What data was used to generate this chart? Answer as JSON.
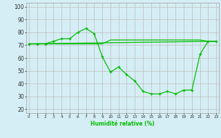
{
  "xlabel": "Humidité relative (%)",
  "background_color": "#d5eef5",
  "grid_color": "#bbbbbb",
  "line_color": "#00bb00",
  "x_ticks": [
    0,
    1,
    2,
    3,
    4,
    5,
    6,
    7,
    8,
    9,
    10,
    11,
    12,
    13,
    14,
    15,
    16,
    17,
    18,
    19,
    20,
    21,
    22,
    23
  ],
  "y_ticks": [
    20,
    30,
    40,
    50,
    60,
    70,
    80,
    90,
    100
  ],
  "xlim": [
    -0.3,
    23.3
  ],
  "ylim": [
    17,
    103
  ],
  "line1_x": [
    0,
    1,
    2,
    3,
    4,
    5,
    6,
    7,
    8,
    9,
    10,
    11,
    12,
    13,
    14,
    15,
    16,
    17,
    18,
    19,
    20,
    21,
    22,
    23
  ],
  "line1_y": [
    71,
    71,
    71,
    73,
    75,
    75,
    80,
    83,
    79,
    61,
    49,
    53,
    47,
    42,
    34,
    32,
    32,
    34,
    32,
    35,
    35,
    63,
    73,
    73
  ],
  "line2_x": [
    0,
    1,
    2,
    3,
    4,
    5,
    6,
    7,
    8,
    9,
    10,
    11,
    12,
    13,
    14,
    15,
    16,
    17,
    18,
    19,
    20,
    21,
    22,
    23
  ],
  "line2_y": [
    71,
    71,
    71,
    71,
    71,
    71,
    71,
    71,
    71,
    71,
    74,
    74,
    74,
    74,
    74,
    74,
    74,
    74,
    74,
    74,
    74,
    74,
    73,
    73
  ],
  "line3_x": [
    0,
    23
  ],
  "line3_y": [
    71,
    73
  ]
}
